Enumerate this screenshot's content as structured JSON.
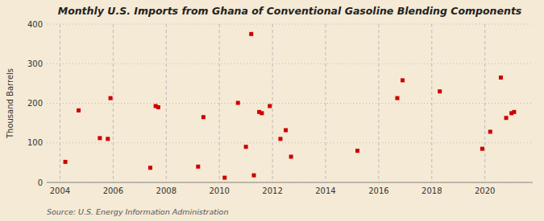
{
  "chart_data": {
    "type": "scatter",
    "title": "Monthly U.S. Imports from Ghana of Conventional Gasoline Blending Components",
    "y_label": "Thousand Barrels",
    "annotations": [
      "Source: U.S. Energy Information Administration"
    ],
    "color": "#cc0000",
    "marker": "square",
    "grid": true,
    "xlim": [
      2003.5,
      2021.8
    ],
    "ylim": [
      0,
      400
    ],
    "xticks": [
      2004,
      2006,
      2008,
      2010,
      2012,
      2014,
      2016,
      2018,
      2020
    ],
    "yticks": [
      0,
      100,
      200,
      300,
      400
    ],
    "x": [
      2004.2,
      2004.7,
      2005.5,
      2005.8,
      2005.9,
      2007.4,
      2007.6,
      2007.7,
      2009.2,
      2009.4,
      2010.2,
      2010.7,
      2011.0,
      2011.2,
      2011.3,
      2011.5,
      2011.6,
      2011.9,
      2012.3,
      2012.5,
      2012.7,
      2015.2,
      2016.7,
      2016.9,
      2018.3,
      2019.9,
      2020.2,
      2020.6,
      2020.8,
      2021.0,
      2021.1
    ],
    "values": [
      52,
      182,
      112,
      110,
      213,
      37,
      193,
      190,
      40,
      165,
      12,
      201,
      90,
      375,
      18,
      178,
      175,
      193,
      110,
      132,
      65,
      80,
      213,
      258,
      230,
      85,
      128,
      265,
      163,
      175,
      178
    ]
  }
}
